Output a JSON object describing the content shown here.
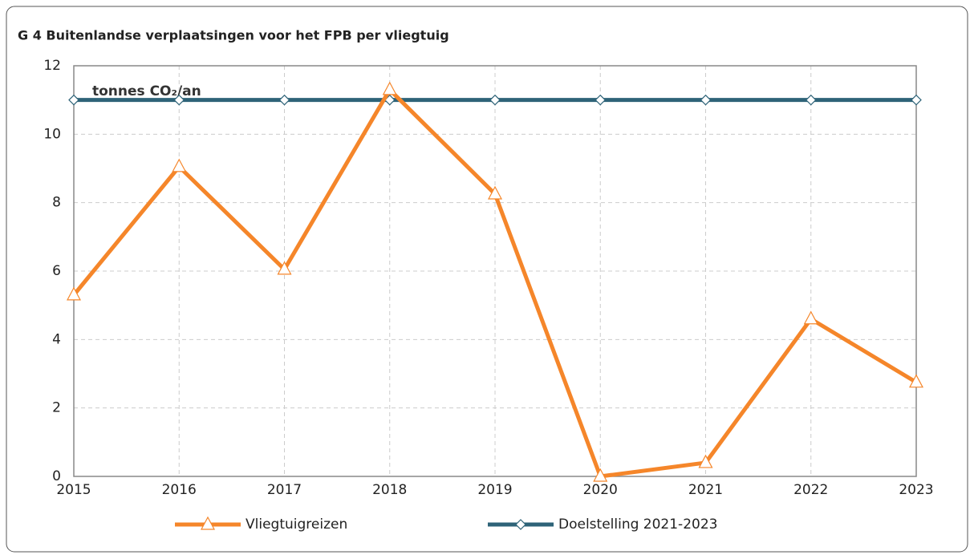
{
  "chart_data": {
    "type": "line",
    "title": "G 4 Buitenlandse verplaatsingen voor het FPB per vliegtuig",
    "annotation": "tonnes CO₂/an",
    "x": [
      2015,
      2016,
      2017,
      2018,
      2019,
      2020,
      2021,
      2022,
      2023
    ],
    "xlim": [
      2015,
      2023
    ],
    "xticks": [
      2015,
      2016,
      2017,
      2018,
      2019,
      2020,
      2021,
      2022,
      2023
    ],
    "ylim": [
      0,
      12
    ],
    "yticks": [
      0,
      2,
      4,
      6,
      8,
      10,
      12
    ],
    "grid": true,
    "legend": "bottom",
    "series": [
      {
        "name": "Vliegtuigreizen",
        "color": "#f5862a",
        "marker": "triangle",
        "values": [
          5.3,
          9.05,
          6.05,
          11.3,
          8.25,
          0.0,
          0.4,
          4.6,
          2.75
        ]
      },
      {
        "name": "Doelstelling 2021-2023",
        "color": "#2e6378",
        "marker": "diamond",
        "values": [
          11,
          11,
          11,
          11,
          11,
          11,
          11,
          11,
          11
        ]
      }
    ]
  }
}
